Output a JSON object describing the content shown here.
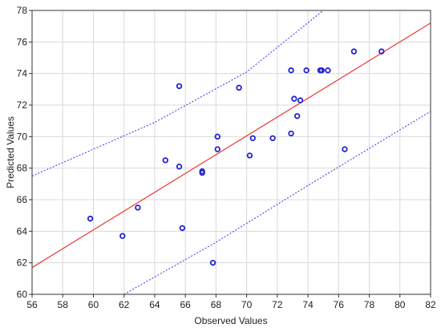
{
  "chart_data": {
    "type": "scatter",
    "title": "",
    "xlabel": "Observed Values",
    "ylabel": "Predicted Values",
    "xlim": [
      56,
      82
    ],
    "ylim": [
      60,
      78
    ],
    "xticks": [
      56,
      58,
      60,
      62,
      64,
      66,
      68,
      70,
      72,
      74,
      76,
      78,
      80,
      82
    ],
    "yticks": [
      60,
      62,
      64,
      66,
      68,
      70,
      72,
      74,
      76,
      78
    ],
    "grid": true,
    "colors": {
      "points": "#2222cc",
      "fit_line": "#ee3333",
      "confidence_band": "#3333ee",
      "grid": "#d9d9d9"
    },
    "points": [
      {
        "x": 59.8,
        "y": 64.8
      },
      {
        "x": 61.9,
        "y": 63.7
      },
      {
        "x": 62.9,
        "y": 65.5
      },
      {
        "x": 64.7,
        "y": 68.5
      },
      {
        "x": 65.6,
        "y": 68.1
      },
      {
        "x": 65.6,
        "y": 73.2
      },
      {
        "x": 65.8,
        "y": 64.2
      },
      {
        "x": 67.1,
        "y": 67.8
      },
      {
        "x": 67.1,
        "y": 67.7
      },
      {
        "x": 67.8,
        "y": 62.0
      },
      {
        "x": 68.1,
        "y": 70.0
      },
      {
        "x": 68.1,
        "y": 69.2
      },
      {
        "x": 69.5,
        "y": 73.1
      },
      {
        "x": 70.2,
        "y": 68.8
      },
      {
        "x": 70.4,
        "y": 69.9
      },
      {
        "x": 71.7,
        "y": 69.9
      },
      {
        "x": 72.9,
        "y": 74.2
      },
      {
        "x": 72.9,
        "y": 70.2
      },
      {
        "x": 73.1,
        "y": 72.4
      },
      {
        "x": 73.3,
        "y": 71.3
      },
      {
        "x": 73.5,
        "y": 72.3
      },
      {
        "x": 73.9,
        "y": 74.2
      },
      {
        "x": 74.8,
        "y": 74.2
      },
      {
        "x": 74.9,
        "y": 74.2
      },
      {
        "x": 75.3,
        "y": 74.2
      },
      {
        "x": 76.4,
        "y": 69.2
      },
      {
        "x": 77.0,
        "y": 75.4
      },
      {
        "x": 78.8,
        "y": 75.4
      }
    ],
    "fit_line": [
      {
        "x": 56,
        "y": 61.7
      },
      {
        "x": 82,
        "y": 77.2
      }
    ],
    "confidence_upper": [
      {
        "x": 56,
        "y": 67.5
      },
      {
        "x": 64,
        "y": 70.9
      },
      {
        "x": 70,
        "y": 74.1
      },
      {
        "x": 75,
        "y": 78.0
      }
    ],
    "confidence_lower": [
      {
        "x": 62,
        "y": 60.0
      },
      {
        "x": 68,
        "y": 63.3
      },
      {
        "x": 74,
        "y": 66.9
      },
      {
        "x": 82,
        "y": 71.6
      }
    ]
  }
}
